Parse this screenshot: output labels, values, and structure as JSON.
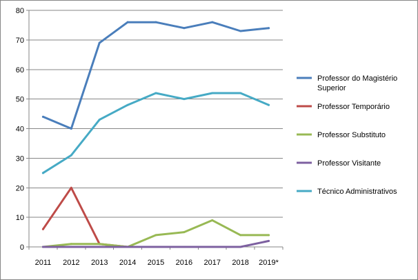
{
  "chart_data": {
    "type": "line",
    "categories": [
      "2011",
      "2012",
      "2013",
      "2014",
      "2015",
      "2016",
      "2017",
      "2018",
      "2019*"
    ],
    "ylim": [
      0,
      80
    ],
    "yticks": [
      0,
      10,
      20,
      30,
      40,
      50,
      60,
      70,
      80
    ],
    "grid": "horizontal",
    "legend_position": "right",
    "title": "",
    "xlabel": "",
    "ylabel": "",
    "series": [
      {
        "name": "Professor do Magistério Superior",
        "name_lines": [
          "Professor do Magistério",
          "Superior"
        ],
        "color": "#4a7ebb",
        "values": [
          44,
          40,
          69,
          76,
          76,
          74,
          76,
          73,
          74
        ]
      },
      {
        "name": "Professor Temporário",
        "name_lines": [
          "Professor Temporário"
        ],
        "color": "#be4b48",
        "values": [
          6,
          20,
          1,
          0,
          null,
          null,
          null,
          null,
          null
        ]
      },
      {
        "name": "Professor Substituto",
        "name_lines": [
          "Professor Substituto"
        ],
        "color": "#98b954",
        "values": [
          0,
          1,
          1,
          0,
          4,
          5,
          9,
          4,
          4
        ]
      },
      {
        "name": "Professor Visitante",
        "name_lines": [
          "Professor Visitante"
        ],
        "color": "#7d60a0",
        "values": [
          0,
          0,
          0,
          0,
          0,
          0,
          0,
          0,
          2
        ]
      },
      {
        "name": "Técnico Administrativos",
        "name_lines": [
          "Técnico Administrativos"
        ],
        "color": "#46aac5",
        "values": [
          25,
          31,
          43,
          48,
          52,
          50,
          52,
          52,
          48
        ]
      }
    ]
  }
}
